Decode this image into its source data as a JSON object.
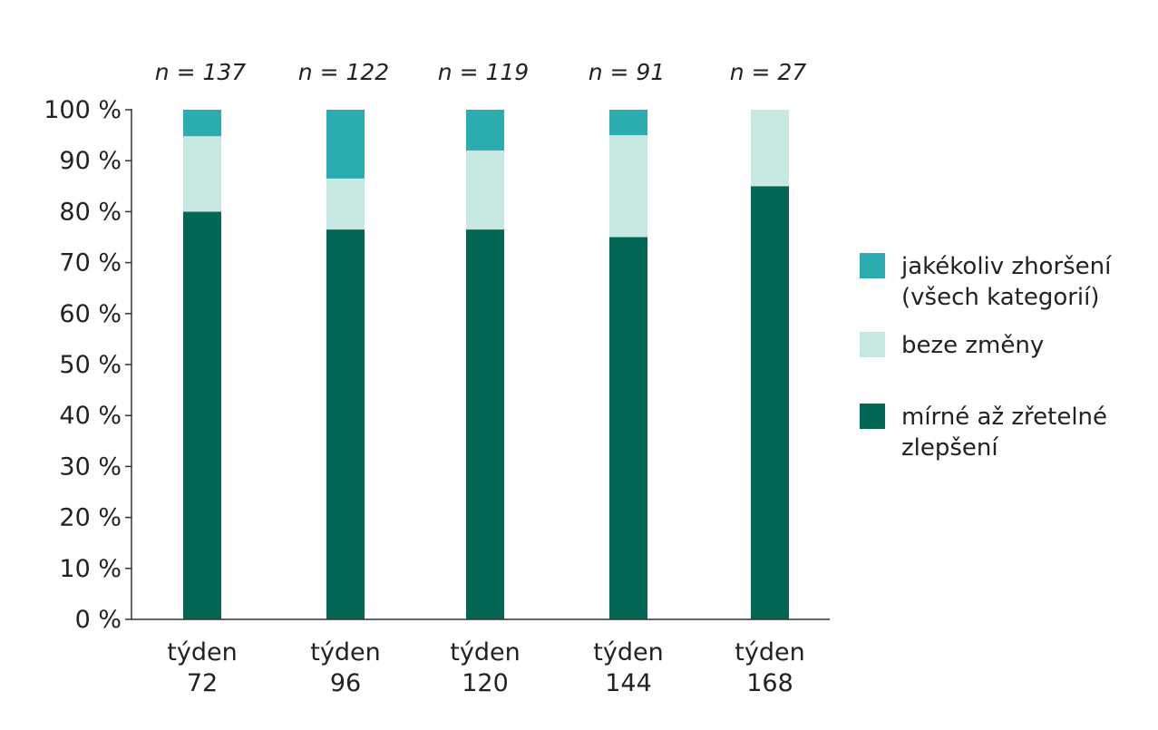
{
  "chart_data": {
    "type": "bar",
    "stacked": true,
    "categories": [
      [
        "týden",
        "72"
      ],
      [
        "týden",
        "96"
      ],
      [
        "týden",
        "120"
      ],
      [
        "týden",
        "144"
      ],
      [
        "týden",
        "168"
      ]
    ],
    "sample_sizes": [
      "n = 137",
      "n = 122",
      "n = 119",
      "n = 91",
      "n = 27"
    ],
    "series": [
      {
        "name": "mírné až zřetelné zlepšení",
        "color": "#046654",
        "values": [
          80,
          76.5,
          76.5,
          75,
          85
        ]
      },
      {
        "name": "beze změny",
        "color": "#c8e8e2",
        "values": [
          14.8,
          10,
          15.5,
          20,
          15
        ]
      },
      {
        "name": "jakékoliv zhoršení (všech kategorií)",
        "color": "#2aacb0",
        "values": [
          5.2,
          13.5,
          8,
          5,
          0
        ]
      }
    ],
    "legend": [
      {
        "lines": [
          "jakékoliv zhoršení",
          "(všech kategorií)"
        ],
        "color": "#2aacb0"
      },
      {
        "lines": [
          "beze změny"
        ],
        "color": "#c8e8e2"
      },
      {
        "lines": [
          "mírné až zřetelné",
          "zlepšení"
        ],
        "color": "#046654"
      }
    ],
    "y_ticks": [
      "0 %",
      "10 %",
      "20 %",
      "30 %",
      "40 %",
      "50 %",
      "60 %",
      "70 %",
      "80 %",
      "90 %",
      "100 %"
    ],
    "ylim": [
      0,
      100
    ],
    "legend_position": "right",
    "grid": false,
    "axis_color": "#333333"
  }
}
